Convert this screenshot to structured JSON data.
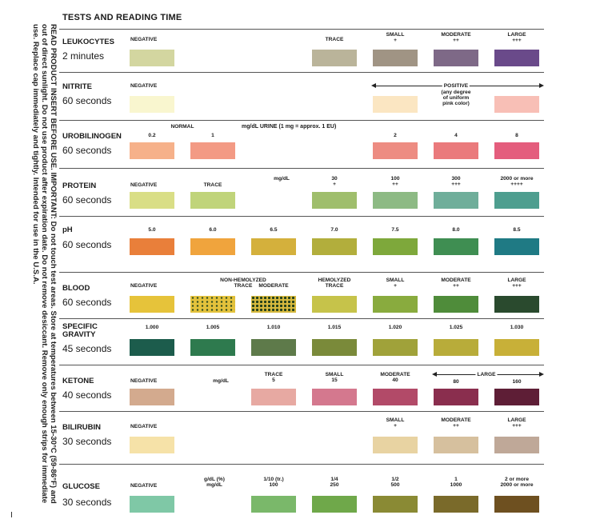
{
  "header": "TESTS AND READING TIME",
  "side_text": "READ PRODUCT INSERT BEFORE USE. IMPORTANT: Do not touch test areas. Store at temperatures between 15-30°C (59-86°F) and out of direct sunlight. Do not use product after expiration date. Do not remove desiccant. Remove only enough strips for immediate use. Replace cap immediately and tightly. Intended for use in the U.S.A.",
  "tests": [
    {
      "name": "LEUKOCYTES",
      "time": "2 minutes",
      "labels": [
        "NEGATIVE",
        "TRACE",
        "SMALL\n+",
        "MODERATE\n++",
        "LARGE\n+++"
      ],
      "swatches": [
        "#d3d6a0",
        "#bab49a",
        "#a09484",
        "#7e6987",
        "#6a4a8a"
      ]
    },
    {
      "name": "NITRITE",
      "time": "60 seconds",
      "labels": [
        "NEGATIVE",
        "POSITIVE",
        "(any degree\nof uniform\npink color)"
      ],
      "swatches": [
        "#f9f6cf",
        "#fbe6c2",
        "#f8bfb6"
      ]
    },
    {
      "name": "UROBILINOGEN",
      "time": "60 seconds",
      "labels": [
        "NORMAL",
        "mg/dL URINE (1 mg = approx. 1 EU)",
        "0.2",
        "1",
        "2",
        "4",
        "8"
      ],
      "swatches": [
        "#f6b18a",
        "#f39a84",
        "#ed8c82",
        "#ea7a7c",
        "#e45d7d"
      ]
    },
    {
      "name": "PROTEIN",
      "time": "60 seconds",
      "labels": [
        "NEGATIVE",
        "TRACE",
        "mg/dL",
        "30\n+",
        "100\n++",
        "300\n+++",
        "2000 or more\n++++"
      ],
      "swatches": [
        "#d9de86",
        "#c0d47a",
        "#9fbe6c",
        "#8dba84",
        "#6fae9a",
        "#4e9e8f"
      ]
    },
    {
      "name": "pH",
      "time": "60 seconds",
      "labels": [
        "5.0",
        "6.0",
        "6.5",
        "7.0",
        "7.5",
        "8.0",
        "8.5"
      ],
      "swatches": [
        "#e97f3a",
        "#f0a43d",
        "#d4b03c",
        "#b2ae3c",
        "#7ea83b",
        "#3f8e52",
        "#1f7a84"
      ]
    },
    {
      "name": "BLOOD",
      "time": "60 seconds",
      "labels": [
        "NEGATIVE",
        "NON-HEMOLYZED\nTRACE",
        "MODERATE",
        "HEMOLYZED\nTRACE",
        "SMALL\n+",
        "MODERATE\n++",
        "LARGE\n+++"
      ],
      "swatches": [
        "#e6c33a",
        "#e3c23c",
        "#d6b93e",
        "#c6c34a",
        "#89ab3e",
        "#4f8c3a",
        "#2a4a2e"
      ]
    },
    {
      "name": "SPECIFIC\nGRAVITY",
      "time": "45 seconds",
      "labels": [
        "1.000",
        "1.005",
        "1.010",
        "1.015",
        "1.020",
        "1.025",
        "1.030"
      ],
      "swatches": [
        "#1c5c4c",
        "#2e7a4e",
        "#5e7a4a",
        "#7a8a3a",
        "#a0a23a",
        "#b8ac3a",
        "#c8b038"
      ]
    },
    {
      "name": "KETONE",
      "time": "40 seconds",
      "labels": [
        "NEGATIVE",
        "mg/dL",
        "TRACE\n5",
        "SMALL\n15",
        "MODERATE\n40",
        "LARGE",
        "80",
        "160"
      ],
      "swatches": [
        "#d3aa8e",
        "#e7a9a2",
        "#d4788e",
        "#b24a68",
        "#8a2e4e",
        "#5e1e36"
      ]
    },
    {
      "name": "BILIRUBIN",
      "time": "30 seconds",
      "labels": [
        "NEGATIVE",
        "SMALL\n+",
        "MODERATE\n++",
        "LARGE\n+++"
      ],
      "swatches": [
        "#f6e2a8",
        "#e8d3a2",
        "#d6c09e",
        "#bfa898"
      ]
    },
    {
      "name": "GLUCOSE",
      "time": "30 seconds",
      "labels": [
        "NEGATIVE",
        "g/dL (%)\nmg/dL",
        "1/10 (tr.)\n100",
        "1/4\n250",
        "1/2\n500",
        "1\n1000",
        "2 or more\n2000 or more"
      ],
      "swatches": [
        "#7fc8a6",
        "#7ab86a",
        "#6fa84a",
        "#8a8a34",
        "#7a6a2a",
        "#6e5020"
      ]
    }
  ]
}
